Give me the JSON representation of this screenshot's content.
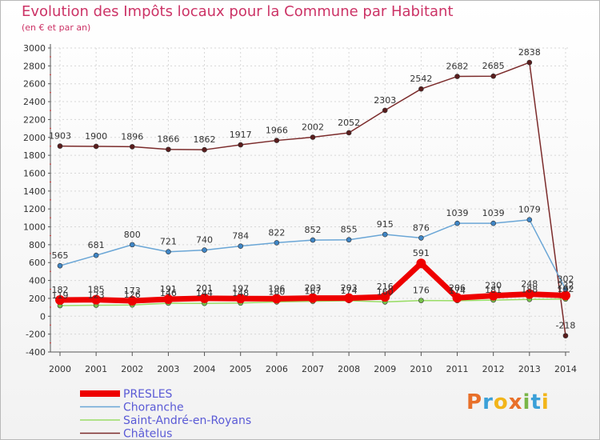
{
  "header": {
    "title": "Evolution des Impôts locaux pour la Commune par Habitant",
    "subtitle": "(en € et par an)"
  },
  "brand": {
    "text": "Proxiti",
    "colors": [
      "#e8702a",
      "#3ba0d8",
      "#f2b51a",
      "#e8702a",
      "#7ab648",
      "#3ba0d8",
      "#f2b51a"
    ]
  },
  "chart_data": {
    "type": "line",
    "title": "Evolution des Impôts locaux pour la Commune par Habitant",
    "subtitle": "(en € et par an)",
    "x": [
      "2000",
      "2001",
      "2002",
      "2003",
      "2004",
      "2005",
      "2006",
      "2007",
      "2008",
      "2009",
      "2010",
      "2011",
      "2012",
      "2013",
      "2014"
    ],
    "ylim": [
      -400,
      3000
    ],
    "yticks": [
      -400,
      -200,
      0,
      200,
      400,
      600,
      800,
      1000,
      1200,
      1400,
      1600,
      1800,
      2000,
      2200,
      2400,
      2600,
      2800,
      3000
    ],
    "grid": true,
    "legend_position": "bottom-left",
    "series": [
      {
        "name": "Châtelus",
        "color": "#7b2b2b",
        "width": 1.5,
        "marker": "#5a1d1d",
        "values": [
          1903,
          1900,
          1896,
          1866,
          1862,
          1917,
          1966,
          2002,
          2052,
          2303,
          2542,
          2682,
          2685,
          2838,
          -218
        ],
        "labels": [
          "1903",
          "1900",
          "1896",
          "1866",
          "1862",
          "1917",
          "1966",
          "2002",
          "2052",
          "2303",
          "2542",
          "2682",
          "2685",
          "2838",
          "-218"
        ]
      },
      {
        "name": "Choranche",
        "color": "#6aa6d6",
        "width": 1.5,
        "marker": "#3f86c6",
        "values": [
          565,
          681,
          800,
          721,
          740,
          784,
          822,
          852,
          855,
          915,
          876,
          1039,
          1039,
          1079,
          302
        ],
        "labels": [
          "565",
          "681",
          "800",
          "721",
          "740",
          "784",
          "822",
          "852",
          "855",
          "915",
          "876",
          "1039",
          "1039",
          "1079",
          "302"
        ]
      },
      {
        "name": "Saint-André-en-Royans",
        "color": "#99dd66",
        "width": 1.5,
        "marker": "#77c24a",
        "values": [
          119,
          123,
          126,
          146,
          144,
          148,
          160,
          167,
          174,
          160,
          176,
          174,
          181,
          188,
          192
        ],
        "labels": [
          "119",
          "123",
          "126",
          "146",
          "144",
          "148",
          "160",
          "167",
          "174",
          "160",
          "176",
          "174",
          "181",
          "188",
          "192"
        ]
      },
      {
        "name": "PRESLES",
        "color": "#ee0000",
        "width": 7,
        "marker": "#ee0000",
        "values": [
          182,
          185,
          173,
          191,
          201,
          197,
          196,
          203,
          203,
          216,
          591,
          206,
          230,
          248,
          232
        ],
        "labels": [
          "182",
          "185",
          "173",
          "191",
          "201",
          "197",
          "196",
          "203",
          "203",
          "216",
          "591",
          "206",
          "230",
          "248",
          "232"
        ]
      }
    ],
    "legend": [
      "PRESLES",
      "Choranche",
      "Saint-André-en-Royans",
      "Châtelus"
    ]
  }
}
